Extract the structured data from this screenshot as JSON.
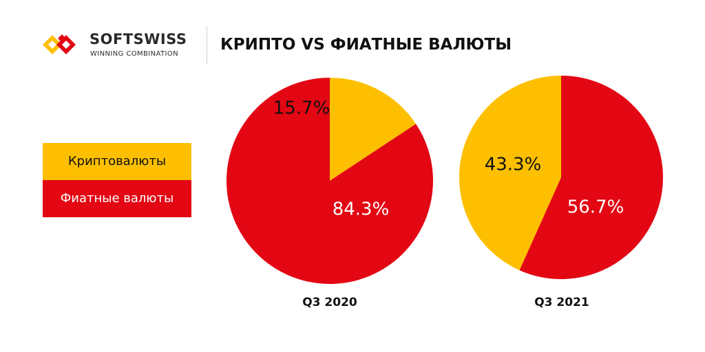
{
  "brand": {
    "name": "SOFTSWISS",
    "tagline": "WINNING COMBINATION"
  },
  "title": "КРИПТО VS ФИАТНЫЕ ВАЛЮТЫ",
  "colors": {
    "crypto": "#fdbf00",
    "fiat": "#e30613",
    "logo_yellow": "#fdbf00",
    "logo_red": "#e30613"
  },
  "legend": {
    "crypto": "Криптовалюты",
    "fiat": "Фиатные валюты"
  },
  "chart_data": [
    {
      "type": "pie",
      "caption": "Q3 2020",
      "slices": [
        {
          "category": "crypto",
          "value": 15.7,
          "label": "15.7%"
        },
        {
          "category": "fiat",
          "value": 84.3,
          "label": "84.3%"
        }
      ]
    },
    {
      "type": "pie",
      "caption": "Q3 2021",
      "slices": [
        {
          "category": "crypto",
          "value": 43.3,
          "label": "43.3%"
        },
        {
          "category": "fiat",
          "value": 56.7,
          "label": "56.7%"
        }
      ]
    }
  ]
}
